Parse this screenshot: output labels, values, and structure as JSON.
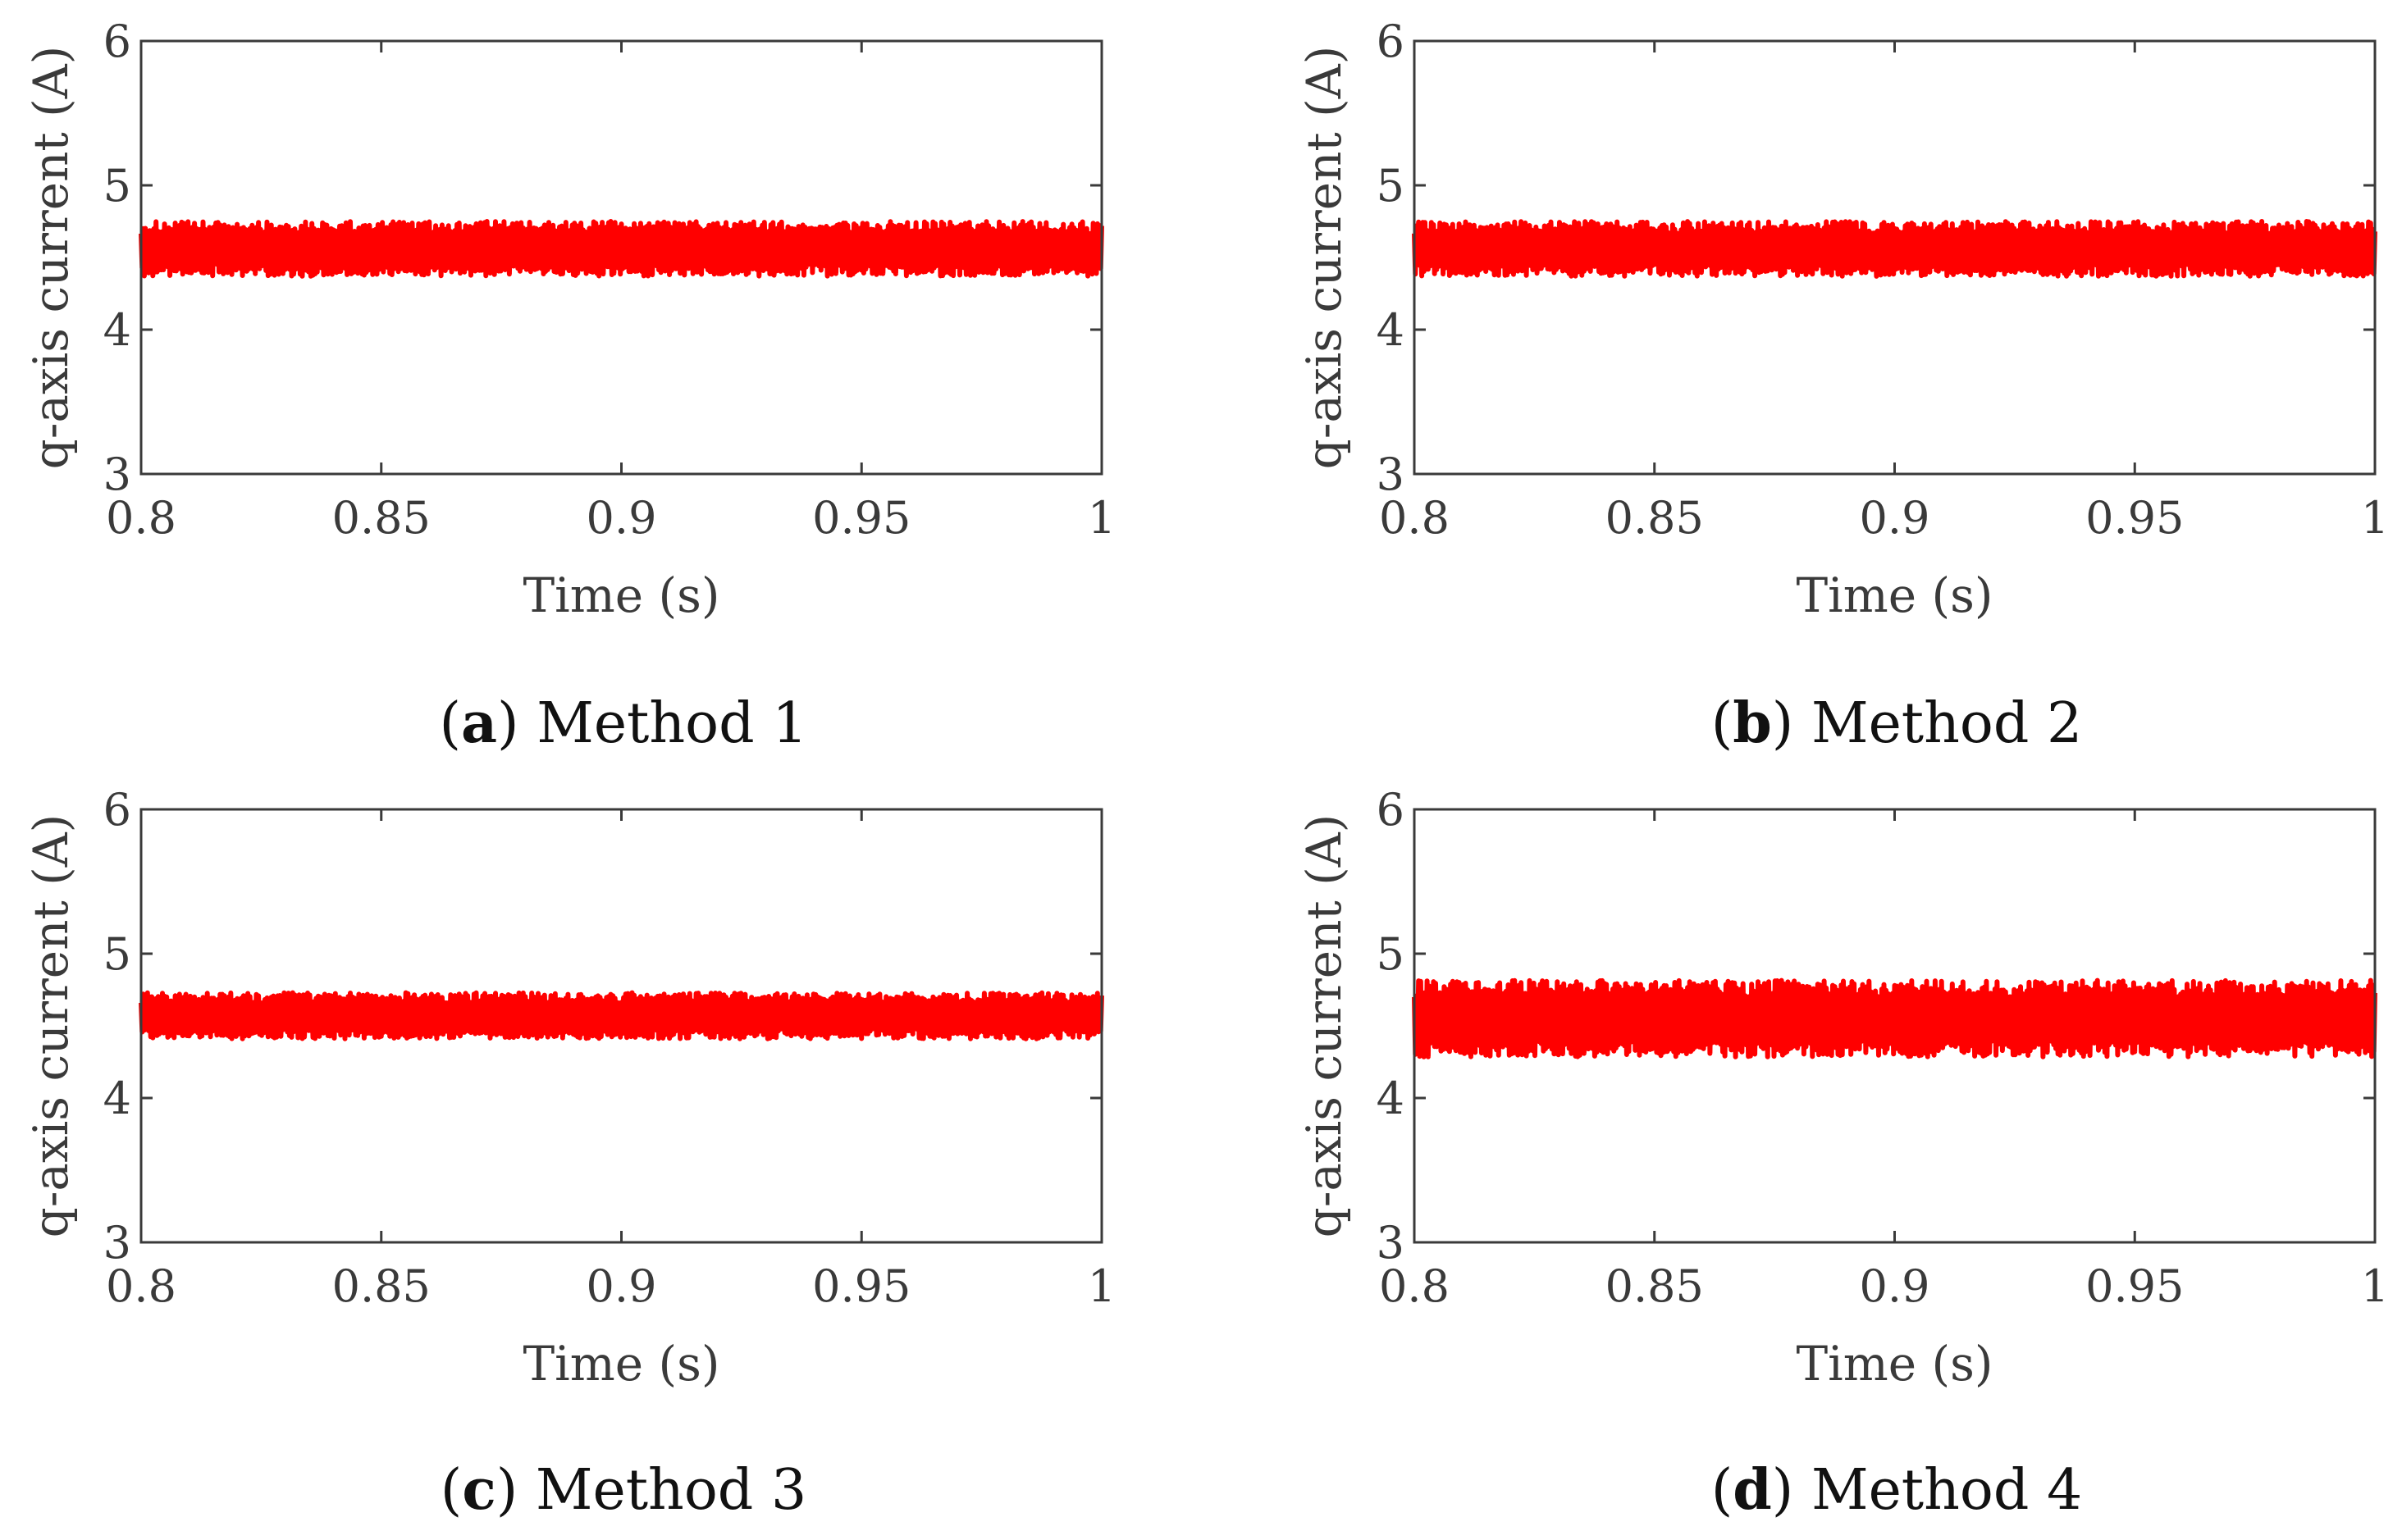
{
  "colors": {
    "signal": "#ff0000",
    "axis": "#3a3a3a",
    "background": "#ffffff"
  },
  "chart_data": [
    {
      "type": "line",
      "panel": "a",
      "caption_open": "(",
      "caption_letter": "a",
      "caption_text": ") Method 1",
      "xlabel": "Time (s)",
      "ylabel": "q-axis current (A)",
      "xlim": [
        0.8,
        1.0
      ],
      "ylim": [
        3,
        6
      ],
      "xticks": [
        0.8,
        0.85,
        0.9,
        0.95,
        1
      ],
      "xtick_labels": [
        "0.8",
        "0.85",
        "0.9",
        "0.95",
        "1"
      ],
      "yticks": [
        3,
        4,
        5,
        6
      ],
      "ytick_labels": [
        "3",
        "4",
        "5",
        "6"
      ],
      "series": [
        {
          "name": "q-axis current",
          "mean": 4.56,
          "ripple_min": 4.38,
          "ripple_max": 4.76
        }
      ]
    },
    {
      "type": "line",
      "panel": "b",
      "caption_open": "(",
      "caption_letter": "b",
      "caption_text": ") Method 2",
      "xlabel": "Time (s)",
      "ylabel": "q-axis current (A)",
      "xlim": [
        0.8,
        1.0
      ],
      "ylim": [
        3,
        6
      ],
      "xticks": [
        0.8,
        0.85,
        0.9,
        0.95,
        1
      ],
      "xtick_labels": [
        "0.8",
        "0.85",
        "0.9",
        "0.95",
        "1"
      ],
      "yticks": [
        3,
        4,
        5,
        6
      ],
      "ytick_labels": [
        "3",
        "4",
        "5",
        "6"
      ],
      "series": [
        {
          "name": "q-axis current",
          "mean": 4.56,
          "ripple_min": 4.38,
          "ripple_max": 4.76
        }
      ]
    },
    {
      "type": "line",
      "panel": "c",
      "caption_open": "(",
      "caption_letter": "c",
      "caption_text": ") Method 3",
      "xlabel": "Time (s)",
      "ylabel": "q-axis current (A)",
      "xlim": [
        0.8,
        1.0
      ],
      "ylim": [
        3,
        6
      ],
      "xticks": [
        0.8,
        0.85,
        0.9,
        0.95,
        1
      ],
      "xtick_labels": [
        "0.8",
        "0.85",
        "0.9",
        "0.95",
        "1"
      ],
      "yticks": [
        3,
        4,
        5,
        6
      ],
      "ytick_labels": [
        "3",
        "4",
        "5",
        "6"
      ],
      "series": [
        {
          "name": "q-axis current",
          "mean": 4.57,
          "ripple_min": 4.41,
          "ripple_max": 4.73
        }
      ]
    },
    {
      "type": "line",
      "panel": "d",
      "caption_open": "(",
      "caption_letter": "d",
      "caption_text": ") Method 4",
      "xlabel": "Time (s)",
      "ylabel": "q-axis current (A)",
      "xlim": [
        0.8,
        1.0
      ],
      "ylim": [
        3,
        6
      ],
      "xticks": [
        0.8,
        0.85,
        0.9,
        0.95,
        1
      ],
      "xtick_labels": [
        "0.8",
        "0.85",
        "0.9",
        "0.95",
        "1"
      ],
      "yticks": [
        3,
        4,
        5,
        6
      ],
      "ytick_labels": [
        "3",
        "4",
        "5",
        "6"
      ],
      "series": [
        {
          "name": "q-axis current",
          "mean": 4.55,
          "ripple_min": 4.29,
          "ripple_max": 4.82
        }
      ]
    }
  ]
}
